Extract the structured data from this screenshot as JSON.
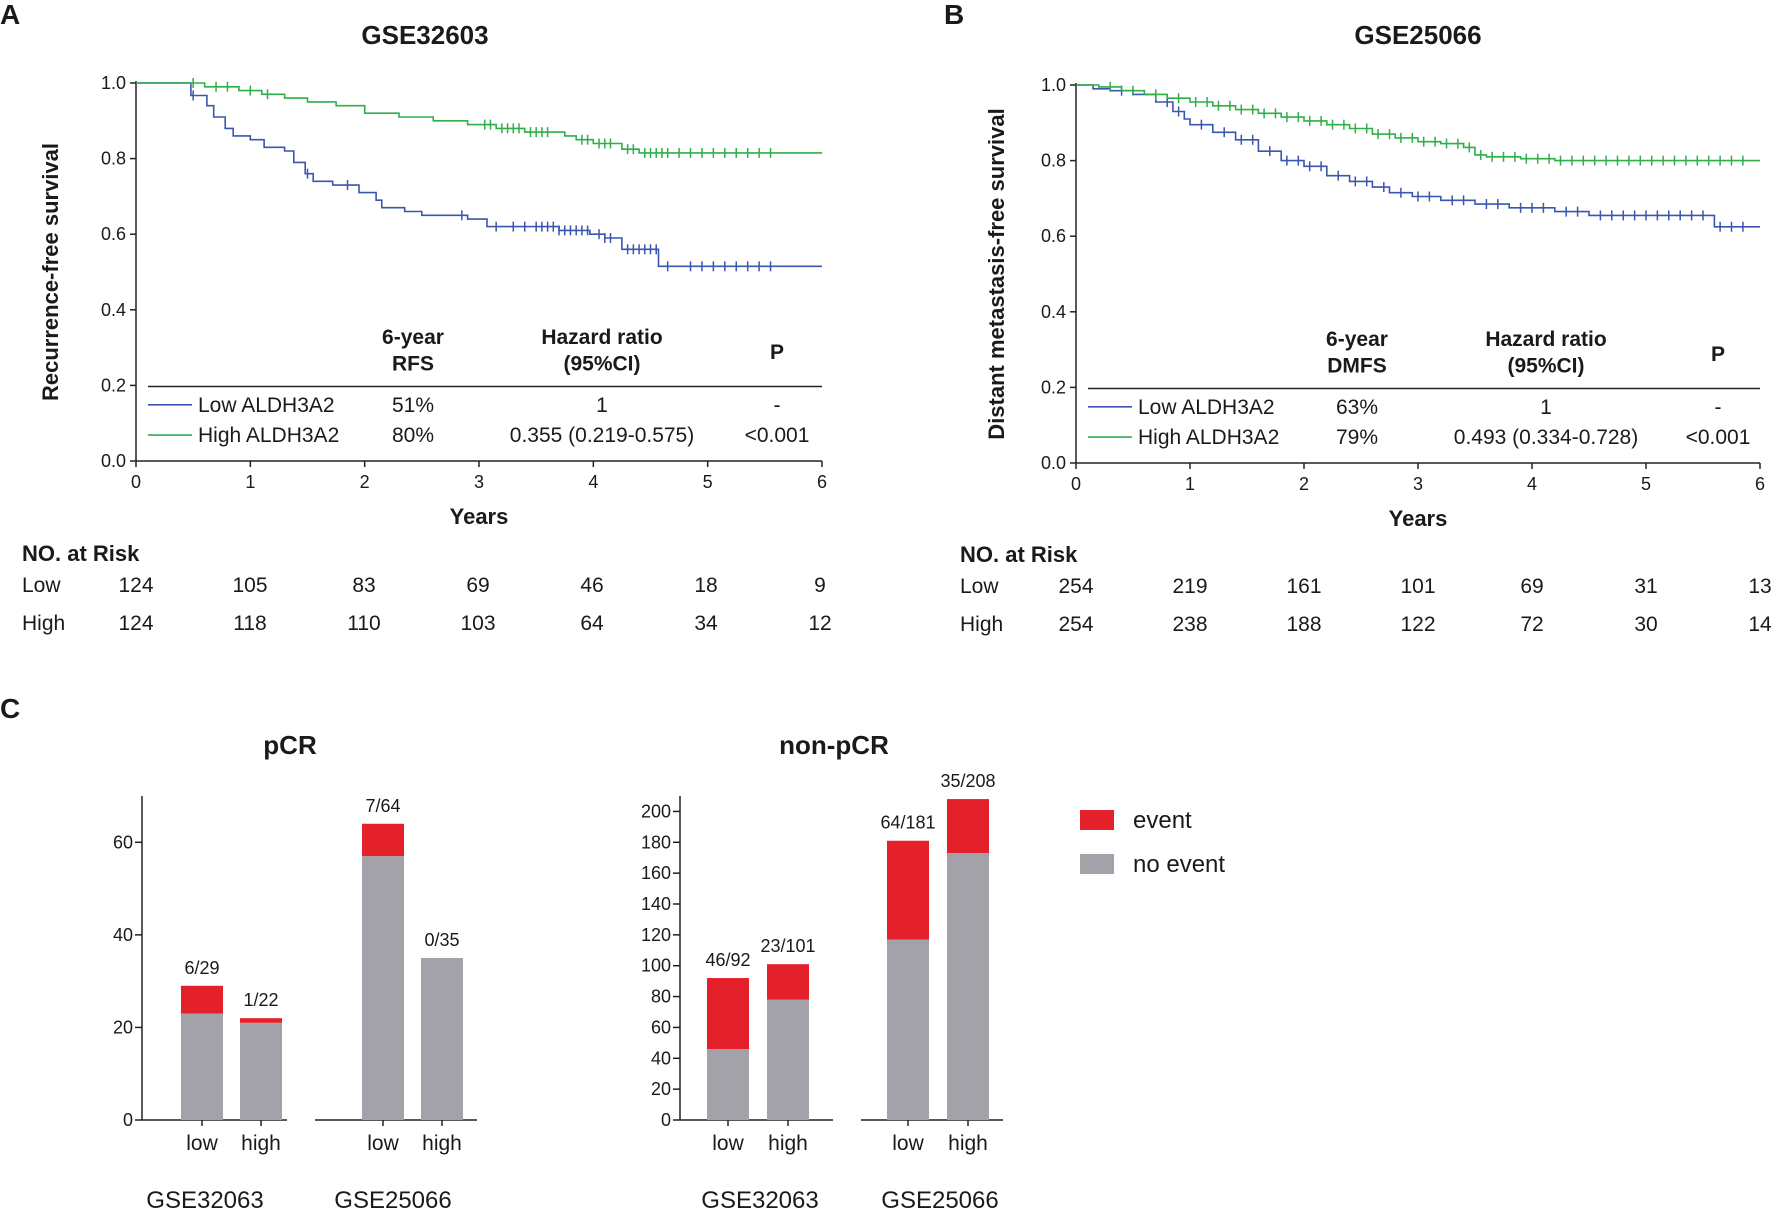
{
  "panel_labels": {
    "a": "A",
    "b": "B",
    "c": "C"
  },
  "colors": {
    "low": "#3a56b0",
    "high": "#2fae4a",
    "event": "#e4202a",
    "no_event": "#a3a2a8"
  },
  "chart_data": [
    {
      "type": "line",
      "id": "km_a",
      "title": "GSE32603",
      "xlabel": "Years",
      "ylabel": "Recurrence-free survival",
      "xlim": [
        0,
        6
      ],
      "ylim": [
        0,
        1
      ],
      "xticks": [
        "0",
        "1",
        "2",
        "3",
        "4",
        "5",
        "6"
      ],
      "yticks": [
        "0.0",
        "0.2",
        "0.4",
        "0.6",
        "0.8",
        "1.0"
      ],
      "table": {
        "headers": [
          [
            "6-year",
            "RFS"
          ],
          [
            "Hazard ratio",
            "(95%CI)"
          ],
          [
            "P"
          ]
        ],
        "rows": [
          {
            "label": "Low ALDH3A2",
            "rate": "51%",
            "hr": "1",
            "p": "-"
          },
          {
            "label": "High ALDH3A2",
            "rate": "80%",
            "hr": "0.355 (0.219-0.575)",
            "p": "<0.001"
          }
        ]
      },
      "series": [
        {
          "name": "Low ALDH3A2",
          "steps": [
            [
              0,
              1.0
            ],
            [
              0.48,
              0.967
            ],
            [
              0.62,
              0.94
            ],
            [
              0.68,
              0.91
            ],
            [
              0.78,
              0.88
            ],
            [
              0.85,
              0.86
            ],
            [
              1.0,
              0.85
            ],
            [
              1.12,
              0.83
            ],
            [
              1.3,
              0.82
            ],
            [
              1.38,
              0.79
            ],
            [
              1.48,
              0.76
            ],
            [
              1.55,
              0.74
            ],
            [
              1.72,
              0.73
            ],
            [
              1.95,
              0.71
            ],
            [
              2.1,
              0.69
            ],
            [
              2.15,
              0.67
            ],
            [
              2.35,
              0.66
            ],
            [
              2.5,
              0.65
            ],
            [
              2.9,
              0.64
            ],
            [
              3.07,
              0.62
            ],
            [
              3.7,
              0.61
            ],
            [
              3.97,
              0.6
            ],
            [
              4.1,
              0.59
            ],
            [
              4.25,
              0.56
            ],
            [
              4.57,
              0.515
            ],
            [
              6.0,
              0.515
            ]
          ],
          "censor": [
            0.5,
            1.5,
            1.85,
            2.85,
            3.15,
            3.3,
            3.4,
            3.5,
            3.55,
            3.6,
            3.65,
            3.7,
            3.75,
            3.8,
            3.85,
            3.9,
            3.95,
            4.05,
            4.1,
            4.15,
            4.3,
            4.35,
            4.4,
            4.45,
            4.5,
            4.55,
            4.65,
            4.85,
            4.95,
            5.05,
            5.15,
            5.25,
            5.35,
            5.45,
            5.55
          ]
        },
        {
          "name": "High ALDH3A2",
          "steps": [
            [
              0,
              1.0
            ],
            [
              0.45,
              1.0
            ],
            [
              0.6,
              0.99
            ],
            [
              0.9,
              0.98
            ],
            [
              1.1,
              0.97
            ],
            [
              1.3,
              0.96
            ],
            [
              1.5,
              0.95
            ],
            [
              1.75,
              0.94
            ],
            [
              2.0,
              0.92
            ],
            [
              2.3,
              0.91
            ],
            [
              2.6,
              0.9
            ],
            [
              2.9,
              0.89
            ],
            [
              3.15,
              0.88
            ],
            [
              3.4,
              0.87
            ],
            [
              3.75,
              0.86
            ],
            [
              3.85,
              0.85
            ],
            [
              4.0,
              0.84
            ],
            [
              4.25,
              0.825
            ],
            [
              4.4,
              0.815
            ],
            [
              6.0,
              0.815
            ]
          ],
          "censor": [
            0.5,
            0.7,
            0.8,
            1.0,
            1.15,
            3.05,
            3.1,
            3.2,
            3.25,
            3.3,
            3.35,
            3.45,
            3.5,
            3.55,
            3.6,
            3.9,
            3.95,
            4.05,
            4.1,
            4.15,
            4.3,
            4.35,
            4.45,
            4.5,
            4.55,
            4.6,
            4.65,
            4.75,
            4.85,
            4.95,
            5.05,
            5.15,
            5.25,
            5.35,
            5.45,
            5.55
          ]
        }
      ],
      "risk_table": {
        "title": "NO. at Risk",
        "rows": [
          {
            "label": "Low",
            "values": [
              "124",
              "105",
              "83",
              "69",
              "46",
              "18",
              "9"
            ]
          },
          {
            "label": "High",
            "values": [
              "124",
              "118",
              "110",
              "103",
              "64",
              "34",
              "12"
            ]
          }
        ]
      }
    },
    {
      "type": "line",
      "id": "km_b",
      "title": "GSE25066",
      "xlabel": "Years",
      "ylabel": "Distant metastasis-free survival",
      "xlim": [
        0,
        6
      ],
      "ylim": [
        0,
        1
      ],
      "xticks": [
        "0",
        "1",
        "2",
        "3",
        "4",
        "5",
        "6"
      ],
      "yticks": [
        "0.0",
        "0.2",
        "0.4",
        "0.6",
        "0.8",
        "1.0"
      ],
      "table": {
        "headers": [
          [
            "6-year",
            "DMFS"
          ],
          [
            "Hazard ratio",
            "(95%CI)"
          ],
          [
            "P"
          ]
        ],
        "rows": [
          {
            "label": "Low ALDH3A2",
            "rate": "63%",
            "hr": "1",
            "p": "-"
          },
          {
            "label": "High ALDH3A2",
            "rate": "79%",
            "hr": "0.493 (0.334-0.728)",
            "p": "<0.001"
          }
        ]
      },
      "series": [
        {
          "name": "Low ALDH3A2",
          "steps": [
            [
              0,
              1.0
            ],
            [
              0.15,
              0.99
            ],
            [
              0.3,
              0.985
            ],
            [
              0.5,
              0.975
            ],
            [
              0.7,
              0.955
            ],
            [
              0.85,
              0.93
            ],
            [
              0.95,
              0.91
            ],
            [
              1.0,
              0.895
            ],
            [
              1.2,
              0.875
            ],
            [
              1.4,
              0.855
            ],
            [
              1.6,
              0.825
            ],
            [
              1.8,
              0.8
            ],
            [
              2.0,
              0.785
            ],
            [
              2.2,
              0.76
            ],
            [
              2.4,
              0.745
            ],
            [
              2.6,
              0.73
            ],
            [
              2.75,
              0.715
            ],
            [
              2.95,
              0.705
            ],
            [
              3.2,
              0.695
            ],
            [
              3.5,
              0.685
            ],
            [
              3.8,
              0.675
            ],
            [
              4.2,
              0.665
            ],
            [
              4.5,
              0.655
            ],
            [
              5.6,
              0.625
            ],
            [
              6.0,
              0.625
            ]
          ],
          "censor": [
            0.4,
            0.8,
            0.9,
            1.1,
            1.3,
            1.45,
            1.55,
            1.7,
            1.85,
            1.95,
            2.05,
            2.15,
            2.3,
            2.45,
            2.55,
            2.7,
            2.85,
            3.0,
            3.1,
            3.3,
            3.4,
            3.6,
            3.7,
            3.9,
            4.0,
            4.1,
            4.3,
            4.4,
            4.6,
            4.7,
            4.8,
            4.9,
            5.0,
            5.1,
            5.2,
            5.3,
            5.4,
            5.5,
            5.65,
            5.75,
            5.85
          ]
        },
        {
          "name": "High ALDH3A2",
          "steps": [
            [
              0,
              1.0
            ],
            [
              0.2,
              0.995
            ],
            [
              0.4,
              0.985
            ],
            [
              0.6,
              0.975
            ],
            [
              0.8,
              0.965
            ],
            [
              1.0,
              0.955
            ],
            [
              1.2,
              0.945
            ],
            [
              1.4,
              0.935
            ],
            [
              1.6,
              0.925
            ],
            [
              1.8,
              0.915
            ],
            [
              2.0,
              0.905
            ],
            [
              2.2,
              0.895
            ],
            [
              2.4,
              0.885
            ],
            [
              2.6,
              0.87
            ],
            [
              2.8,
              0.86
            ],
            [
              3.0,
              0.85
            ],
            [
              3.2,
              0.845
            ],
            [
              3.4,
              0.835
            ],
            [
              3.5,
              0.815
            ],
            [
              3.6,
              0.81
            ],
            [
              3.9,
              0.805
            ],
            [
              4.2,
              0.8
            ],
            [
              6.0,
              0.8
            ]
          ],
          "censor": [
            0.3,
            0.5,
            0.7,
            0.9,
            1.05,
            1.15,
            1.25,
            1.35,
            1.45,
            1.55,
            1.65,
            1.75,
            1.85,
            1.95,
            2.05,
            2.15,
            2.25,
            2.35,
            2.45,
            2.55,
            2.65,
            2.75,
            2.85,
            2.95,
            3.05,
            3.15,
            3.25,
            3.35,
            3.45,
            3.55,
            3.65,
            3.75,
            3.85,
            3.95,
            4.05,
            4.15,
            4.25,
            4.35,
            4.45,
            4.55,
            4.65,
            4.75,
            4.85,
            4.95,
            5.05,
            5.15,
            5.25,
            5.35,
            5.45,
            5.55,
            5.65,
            5.75,
            5.85
          ]
        }
      ],
      "risk_table": {
        "title": "NO. at Risk",
        "rows": [
          {
            "label": "Low",
            "values": [
              "254",
              "219",
              "161",
              "101",
              "69",
              "31",
              "13"
            ]
          },
          {
            "label": "High",
            "values": [
              "254",
              "238",
              "188",
              "122",
              "72",
              "30",
              "14"
            ]
          }
        ]
      }
    },
    {
      "type": "bar",
      "id": "bar_pcr",
      "stacked": true,
      "title": "pCR",
      "ylim": [
        0,
        70
      ],
      "yticks": [
        0,
        20,
        40,
        60
      ],
      "categories": [
        "low",
        "high",
        "low",
        "high"
      ],
      "groups": [
        "GSE32063",
        "GSE25066"
      ],
      "series": [
        {
          "name": "no event",
          "values": [
            23,
            21,
            57,
            35
          ]
        },
        {
          "name": "event",
          "values": [
            6,
            1,
            7,
            0
          ]
        }
      ],
      "annotations": [
        "6/29",
        "1/22",
        "7/64",
        "0/35"
      ]
    },
    {
      "type": "bar",
      "id": "bar_nonpcr",
      "stacked": true,
      "title": "non-pCR",
      "ylim": [
        0,
        210
      ],
      "yticks": [
        0,
        20,
        40,
        60,
        80,
        100,
        120,
        140,
        160,
        180,
        200
      ],
      "categories": [
        "low",
        "high",
        "low",
        "high"
      ],
      "groups": [
        "GSE32063",
        "GSE25066"
      ],
      "series": [
        {
          "name": "no event",
          "values": [
            46,
            78,
            117,
            173
          ]
        },
        {
          "name": "event",
          "values": [
            46,
            23,
            64,
            35
          ]
        }
      ],
      "annotations": [
        "46/92",
        "23/101",
        "64/181",
        "35/208"
      ]
    }
  ],
  "legend_c": [
    {
      "key": "event",
      "label": "event"
    },
    {
      "key": "no_event",
      "label": "no event"
    }
  ]
}
